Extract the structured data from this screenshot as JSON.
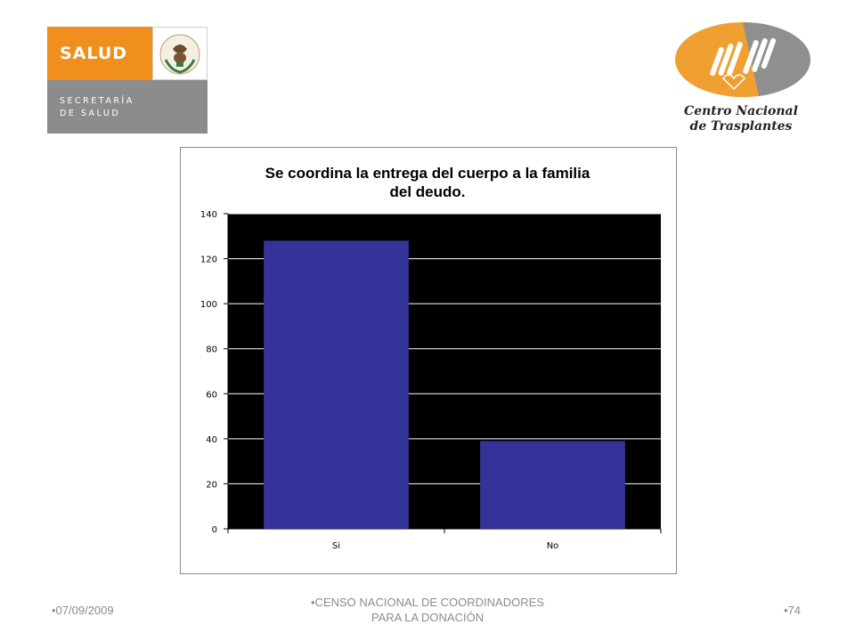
{
  "logos": {
    "left": {
      "word": "SALUD",
      "line1": "SECRETARÍA",
      "line2": "DE SALUD",
      "seal_text": "ESTADOS UNIDOS MEXICANOS",
      "colors": {
        "orange": "#f08f1d",
        "grey": "#8c8c8c"
      }
    },
    "right": {
      "line1": "Centro Nacional",
      "line2": "de Trasplantes",
      "colors": {
        "orange": "#f0a030",
        "grey": "#8f8f8f"
      }
    }
  },
  "chart_data": {
    "type": "bar",
    "title_lines": [
      "Se coordina la entrega del cuerpo a la familia",
      "del deudo."
    ],
    "categories": [
      "Si",
      "No"
    ],
    "values": [
      128,
      39
    ],
    "ylim": [
      0,
      140
    ],
    "yticks": [
      0,
      20,
      40,
      60,
      80,
      100,
      120,
      140
    ],
    "xlabel": "",
    "ylabel": "",
    "grid": true,
    "legend": "none",
    "colors": {
      "bar": "#333399",
      "plot_background": "#000000",
      "gridline": "#ffffff"
    }
  },
  "footer": {
    "date": "•07/09/2009",
    "center_line1": "•CENSO NACIONAL DE COORDINADORES",
    "center_line2": "PARA LA DONACIÓN",
    "page": "•74"
  }
}
